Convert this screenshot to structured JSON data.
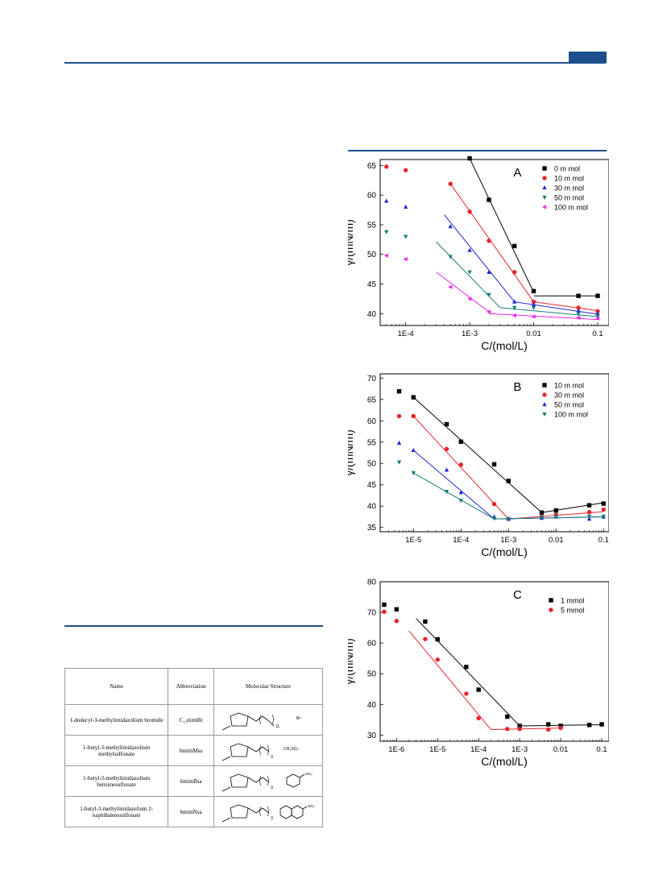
{
  "header": {
    "accent_color": "#1d4f8c"
  },
  "table": {
    "columns": [
      "Name",
      "Abbreviation",
      "Molecular Structure"
    ],
    "rows": [
      {
        "name": "1-dodecyl-3-methylimidazolium bromide",
        "abbr": "C₁₂mimBr",
        "chain": "11",
        "anion": "Br⁻",
        "anion_icon": "bromide-ion"
      },
      {
        "name": "1-butyl-3-methylimidazolium methylsulfonate",
        "abbr": "bmimMsa",
        "chain": "3",
        "anion": "CH₃SO₃⁻",
        "anion_icon": "methylsulfonate-ion"
      },
      {
        "name": "1-butyl-3-methylimidazolium benzenesulfonate",
        "abbr": "bmimBsa",
        "chain": "3",
        "anion": "SO₃⁻",
        "anion_icon": "benzene-ring-icon"
      },
      {
        "name": "1-butyl-3-methylimidazolium 2-naphthalenesulfonate",
        "abbr": "bmimNsa",
        "chain": "3",
        "anion": "SO₃⁻",
        "anion_icon": "naphthalene-ring-icon"
      }
    ]
  },
  "chart_data": [
    {
      "type": "scatter",
      "panel": "A",
      "xlabel": "C/(mol/L)",
      "ylabel": "γ/(mN/m)",
      "xscale": "log",
      "xlim": [
        4e-05,
        0.15
      ],
      "ylim": [
        38,
        66
      ],
      "xticks": [
        "1E-4",
        "1E-3",
        "0.01",
        "0.1"
      ],
      "yticks": [
        "40",
        "45",
        "50",
        "55",
        "60",
        "65"
      ],
      "legend": "top-right",
      "series": [
        {
          "name": "0 m mol",
          "marker": "square",
          "color": "#000000",
          "points": [
            [
              0.001,
              66.2
            ],
            [
              0.002,
              59.2
            ],
            [
              0.005,
              51.4
            ],
            [
              0.01,
              43.8
            ],
            [
              0.05,
              43.0
            ],
            [
              0.1,
              43.0
            ]
          ],
          "fit": [
            [
              [
                0.001,
                66.2
              ],
              [
                0.01,
                43.6
              ]
            ],
            [
              [
                0.01,
                43.0
              ],
              [
                0.1,
                43.0
              ]
            ]
          ]
        },
        {
          "name": "10 m mol",
          "marker": "circle",
          "color": "#e8242c",
          "points": [
            [
              5e-05,
              64.8
            ],
            [
              0.0001,
              64.2
            ],
            [
              0.0005,
              61.9
            ],
            [
              0.001,
              57.2
            ],
            [
              0.002,
              52.3
            ],
            [
              0.005,
              47.0
            ],
            [
              0.01,
              42.0
            ],
            [
              0.05,
              41.0
            ],
            [
              0.1,
              40.4
            ]
          ],
          "fit": [
            [
              [
                0.0005,
                61.9
              ],
              [
                0.01,
                42.0
              ]
            ],
            [
              [
                0.01,
                42.0
              ],
              [
                0.1,
                40.5
              ]
            ]
          ]
        },
        {
          "name": "30 m mol",
          "marker": "triangle-up",
          "color": "#1f2bd6",
          "points": [
            [
              5e-05,
              59.0
            ],
            [
              0.0001,
              58.0
            ],
            [
              0.0005,
              54.7
            ],
            [
              0.001,
              50.7
            ],
            [
              0.002,
              47.0
            ],
            [
              0.005,
              42.0
            ],
            [
              0.01,
              41.5
            ],
            [
              0.05,
              40.5
            ],
            [
              0.1,
              40.0
            ]
          ],
          "fit": [
            [
              [
                0.0004,
                56.7
              ],
              [
                0.005,
                42.0
              ]
            ],
            [
              [
                0.005,
                42.0
              ],
              [
                0.1,
                39.9
              ]
            ]
          ]
        },
        {
          "name": "50 m mol",
          "marker": "triangle-down",
          "color": "#177b7b",
          "points": [
            [
              5e-05,
              53.8
            ],
            [
              0.0001,
              53.0
            ],
            [
              0.0005,
              49.6
            ],
            [
              0.001,
              47.0
            ],
            [
              0.002,
              43.2
            ],
            [
              0.005,
              41.0
            ],
            [
              0.01,
              41.0
            ],
            [
              0.05,
              40.0
            ],
            [
              0.1,
              39.6
            ]
          ],
          "fit": [
            [
              [
                0.0003,
                52.1
              ],
              [
                0.003,
                41.0
              ]
            ],
            [
              [
                0.003,
                41.0
              ],
              [
                0.1,
                39.5
              ]
            ]
          ]
        },
        {
          "name": "100 m mol",
          "marker": "triangle-left",
          "color": "#e826e8",
          "points": [
            [
              5e-05,
              49.8
            ],
            [
              0.0001,
              49.2
            ],
            [
              0.0005,
              44.5
            ],
            [
              0.001,
              42.5
            ],
            [
              0.002,
              40.3
            ],
            [
              0.005,
              39.7
            ],
            [
              0.01,
              39.5
            ],
            [
              0.05,
              39.3
            ],
            [
              0.1,
              39.2
            ]
          ],
          "fit": [
            [
              [
                0.0003,
                47.0
              ],
              [
                0.002,
                40.3
              ]
            ],
            [
              [
                0.002,
                40.0
              ],
              [
                0.1,
                39.0
              ]
            ]
          ]
        }
      ]
    },
    {
      "type": "scatter",
      "panel": "B",
      "xlabel": "C/(mol/L)",
      "ylabel": "γ/(mN/m)",
      "xscale": "log",
      "xlim": [
        2e-06,
        0.13
      ],
      "ylim": [
        34,
        71
      ],
      "xticks": [
        "1E-5",
        "1E-4",
        "1E-3",
        "0.01",
        "0.1"
      ],
      "yticks": [
        "35",
        "40",
        "45",
        "50",
        "55",
        "60",
        "65",
        "70"
      ],
      "legend": "top-right",
      "series": [
        {
          "name": "10 m mol",
          "marker": "square",
          "color": "#000000",
          "points": [
            [
              5e-06,
              66.9
            ],
            [
              1e-05,
              65.5
            ],
            [
              5e-05,
              59.2
            ],
            [
              0.0001,
              55.1
            ],
            [
              0.0005,
              49.8
            ],
            [
              0.001,
              45.9
            ],
            [
              0.005,
              38.5
            ],
            [
              0.01,
              39.0
            ],
            [
              0.05,
              40.2
            ],
            [
              0.1,
              40.6
            ]
          ],
          "fit": [
            [
              [
                1e-05,
                65.5
              ],
              [
                0.005,
                38.5
              ]
            ],
            [
              [
                0.005,
                38.5
              ],
              [
                0.1,
                40.8
              ]
            ]
          ]
        },
        {
          "name": "30 m mol",
          "marker": "circle",
          "color": "#e8242c",
          "points": [
            [
              5e-06,
              61.1
            ],
            [
              1e-05,
              61.1
            ],
            [
              5e-05,
              53.4
            ],
            [
              0.0001,
              49.7
            ],
            [
              0.0005,
              40.5
            ],
            [
              0.001,
              37.0
            ],
            [
              0.005,
              37.5
            ],
            [
              0.01,
              38.0
            ],
            [
              0.05,
              38.6
            ],
            [
              0.1,
              39.2
            ]
          ],
          "fit": [
            [
              [
                1e-05,
                61.1
              ],
              [
                0.001,
                37.0
              ]
            ],
            [
              [
                0.001,
                37.0
              ],
              [
                0.1,
                38.7
              ]
            ]
          ]
        },
        {
          "name": "50 m mol",
          "marker": "triangle-up",
          "color": "#1f2bd6",
          "points": [
            [
              5e-06,
              54.8
            ],
            [
              1e-05,
              53.1
            ],
            [
              5e-05,
              48.5
            ],
            [
              0.0001,
              43.2
            ],
            [
              0.0005,
              37.5
            ],
            [
              0.001,
              37.0
            ],
            [
              0.005,
              37.2
            ],
            [
              0.01,
              37.5
            ],
            [
              0.05,
              37.0
            ],
            [
              0.1,
              37.5
            ]
          ],
          "fit": [
            [
              [
                1e-05,
                53.1
              ],
              [
                0.0005,
                37.0
              ]
            ],
            [
              [
                0.0005,
                37.0
              ],
              [
                0.1,
                37.5
              ]
            ]
          ]
        },
        {
          "name": "100 m mol",
          "marker": "triangle-down",
          "color": "#177b7b",
          "points": [
            [
              5e-06,
              50.3
            ],
            [
              1e-05,
              47.8
            ],
            [
              5e-05,
              43.4
            ],
            [
              0.0001,
              41.3
            ],
            [
              0.0005,
              37.1
            ],
            [
              0.001,
              37.0
            ],
            [
              0.005,
              37.4
            ],
            [
              0.01,
              37.6
            ],
            [
              0.05,
              37.6
            ],
            [
              0.1,
              37.6
            ]
          ],
          "fit": [
            [
              [
                1e-05,
                47.8
              ],
              [
                0.0005,
                37.0
              ]
            ],
            [
              [
                0.0005,
                37.0
              ],
              [
                0.1,
                37.5
              ]
            ]
          ]
        }
      ]
    },
    {
      "type": "scatter",
      "panel": "C",
      "xlabel": "C/(mol/L)",
      "ylabel": "γ/(mN/m)",
      "xscale": "log",
      "xlim": [
        4e-07,
        0.15
      ],
      "ylim": [
        28,
        80
      ],
      "xticks": [
        "1E-6",
        "1E-5",
        "1E-4",
        "1E-3",
        "0.01",
        "0.1"
      ],
      "yticks": [
        "30",
        "40",
        "50",
        "60",
        "70",
        "80"
      ],
      "legend": "top-right",
      "series": [
        {
          "name": "1 mmol",
          "marker": "square",
          "color": "#000000",
          "points": [
            [
              5e-07,
              72.5
            ],
            [
              1e-06,
              71.0
            ],
            [
              5e-06,
              67.0
            ],
            [
              1e-05,
              61.2
            ],
            [
              5e-05,
              52.2
            ],
            [
              0.0001,
              44.8
            ],
            [
              0.0005,
              36.0
            ],
            [
              0.001,
              33.0
            ],
            [
              0.005,
              33.5
            ],
            [
              0.01,
              33.0
            ],
            [
              0.05,
              33.3
            ],
            [
              0.1,
              33.5
            ]
          ],
          "fit": [
            [
              [
                3e-06,
                68.0
              ],
              [
                0.001,
                33.0
              ]
            ],
            [
              [
                0.001,
                33.0
              ],
              [
                0.1,
                33.4
              ]
            ]
          ]
        },
        {
          "name": "5 mmol",
          "marker": "circle",
          "color": "#e8242c",
          "points": [
            [
              5e-07,
              70.2
            ],
            [
              1e-06,
              67.2
            ],
            [
              5e-06,
              61.3
            ],
            [
              1e-05,
              54.6
            ],
            [
              5e-05,
              43.5
            ],
            [
              0.0001,
              35.5
            ],
            [
              0.0005,
              32.0
            ],
            [
              0.001,
              32.0
            ],
            [
              0.005,
              31.8
            ],
            [
              0.01,
              32.3
            ]
          ],
          "fit": [
            [
              [
                2e-06,
                64.0
              ],
              [
                0.0002,
                31.8
              ]
            ],
            [
              [
                0.0002,
                31.8
              ],
              [
                0.01,
                32.3
              ]
            ]
          ]
        }
      ]
    }
  ]
}
